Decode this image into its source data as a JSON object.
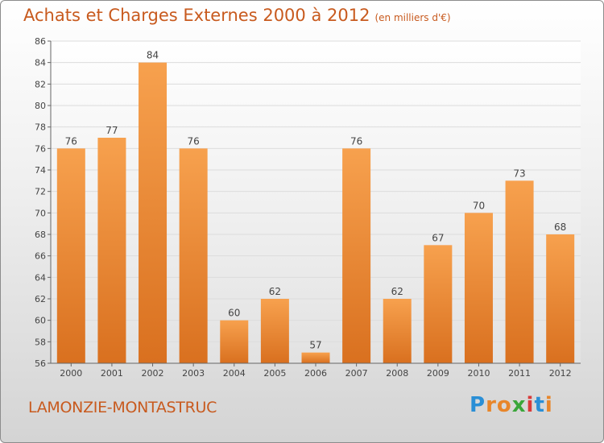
{
  "header": {
    "title": "Achats et Charges Externes 2000 à 2012",
    "subtitle": "(en milliers d'€)"
  },
  "footer": {
    "commune": "LAMONZIE-MONTASTRUC",
    "logo_letters": [
      "P",
      "r",
      "o",
      "x",
      "i",
      "t",
      "i"
    ],
    "logo_colors": [
      "#2a8fd6",
      "#e8862a",
      "#e8862a",
      "#3aa63a",
      "#d93a3a",
      "#2a8fd6",
      "#e8862a"
    ]
  },
  "chart_data": {
    "type": "bar",
    "categories": [
      "2000",
      "2001",
      "2002",
      "2003",
      "2004",
      "2005",
      "2006",
      "2007",
      "2008",
      "2009",
      "2010",
      "2011",
      "2012"
    ],
    "values": [
      76,
      77,
      84,
      76,
      60,
      62,
      57,
      76,
      62,
      67,
      70,
      73,
      68
    ],
    "ylim": [
      56,
      86
    ],
    "yticks": [
      56,
      58,
      60,
      62,
      64,
      66,
      68,
      70,
      72,
      74,
      76,
      78,
      80,
      82,
      84,
      86
    ],
    "grid": true,
    "bar_color_top": "#f7a14e",
    "bar_color_bottom": "#d9701f"
  }
}
